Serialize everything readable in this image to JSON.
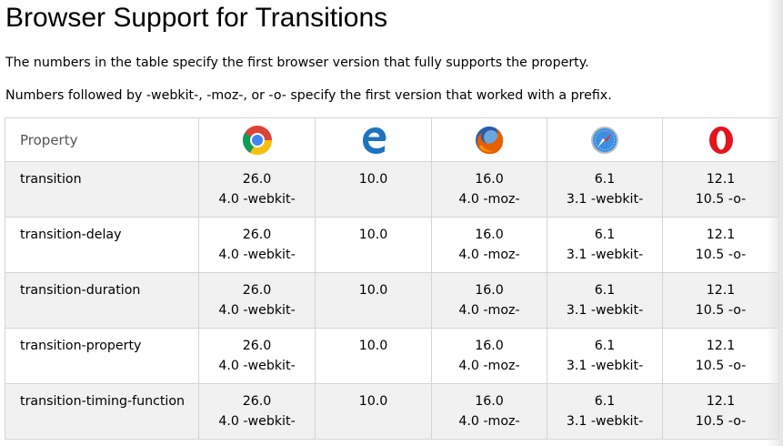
{
  "page": {
    "title": "Browser Support for Transitions",
    "paragraphs": [
      "The numbers in the table specify the first browser version that fully supports the property.",
      "Numbers followed by -webkit-, -moz-, or -o- specify the first version that worked with a prefix."
    ]
  },
  "table": {
    "header": {
      "property_label": "Property",
      "browsers": [
        {
          "icon": "chrome-icon"
        },
        {
          "icon": "edge-icon"
        },
        {
          "icon": "firefox-icon"
        },
        {
          "icon": "safari-icon"
        },
        {
          "icon": "opera-icon"
        }
      ]
    },
    "rows": [
      {
        "property": "transition",
        "chrome": [
          "26.0",
          "4.0 -webkit-"
        ],
        "edge": [
          "10.0",
          ""
        ],
        "firefox": [
          "16.0",
          "4.0 -moz-"
        ],
        "safari": [
          "6.1",
          "3.1 -webkit-"
        ],
        "opera": [
          "12.1",
          "10.5 -o-"
        ]
      },
      {
        "property": "transition-delay",
        "chrome": [
          "26.0",
          "4.0 -webkit-"
        ],
        "edge": [
          "10.0",
          ""
        ],
        "firefox": [
          "16.0",
          "4.0 -moz-"
        ],
        "safari": [
          "6.1",
          "3.1 -webkit-"
        ],
        "opera": [
          "12.1",
          "10.5 -o-"
        ]
      },
      {
        "property": "transition-duration",
        "chrome": [
          "26.0",
          "4.0 -webkit-"
        ],
        "edge": [
          "10.0",
          ""
        ],
        "firefox": [
          "16.0",
          "4.0 -moz-"
        ],
        "safari": [
          "6.1",
          "3.1 -webkit-"
        ],
        "opera": [
          "12.1",
          "10.5 -o-"
        ]
      },
      {
        "property": "transition-property",
        "chrome": [
          "26.0",
          "4.0 -webkit-"
        ],
        "edge": [
          "10.0",
          ""
        ],
        "firefox": [
          "16.0",
          "4.0 -moz-"
        ],
        "safari": [
          "6.1",
          "3.1 -webkit-"
        ],
        "opera": [
          "12.1",
          "10.5 -o-"
        ]
      },
      {
        "property": "transition-timing-function",
        "chrome": [
          "26.0",
          "4.0 -webkit-"
        ],
        "edge": [
          "10.0",
          ""
        ],
        "firefox": [
          "16.0",
          "4.0 -moz-"
        ],
        "safari": [
          "6.1",
          "3.1 -webkit-"
        ],
        "opera": [
          "12.1",
          "10.5 -o-"
        ]
      }
    ]
  },
  "colors": {
    "row_shade": "#f1f1f1",
    "border": "#d4d4d4",
    "header_text": "#555555"
  }
}
